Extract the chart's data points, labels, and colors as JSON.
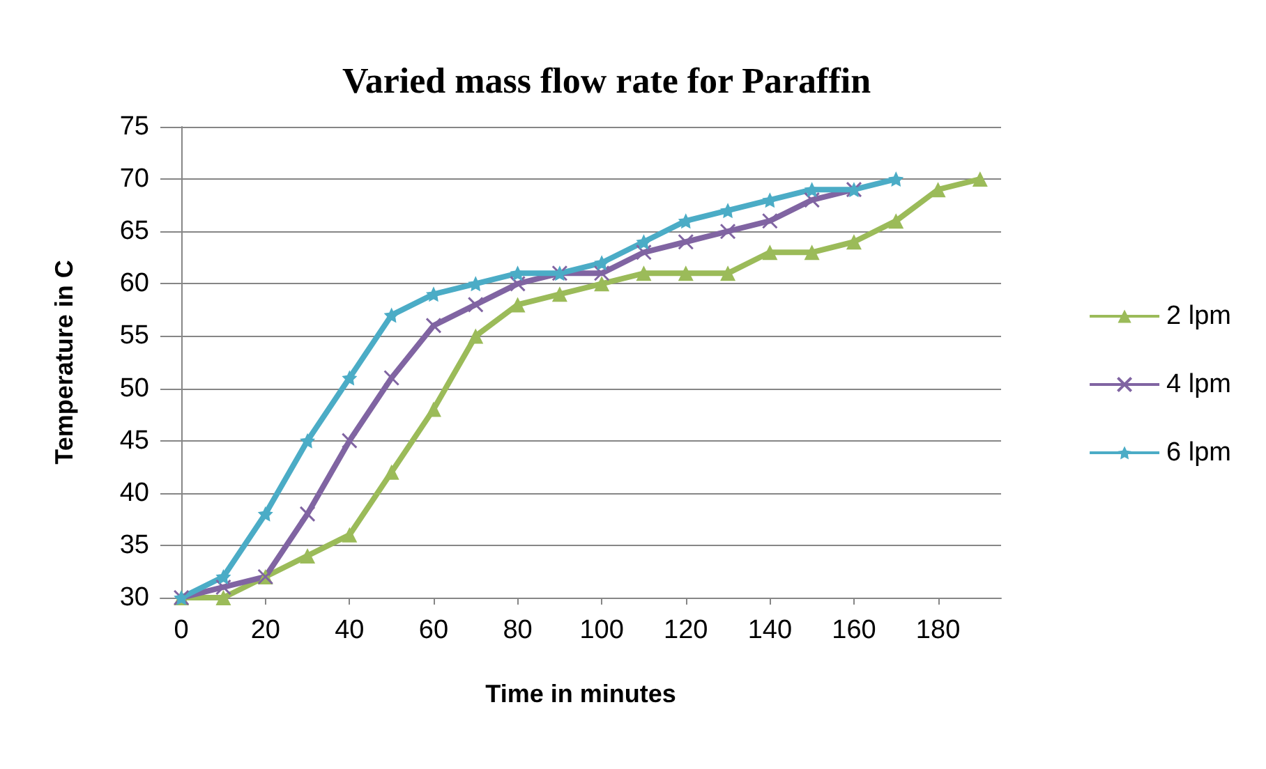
{
  "chart_data": {
    "type": "line",
    "title": "Varied mass flow rate for Paraffin",
    "xlabel": "Time in minutes",
    "ylabel": "Temperature in C",
    "xlim": [
      -5,
      195
    ],
    "xticks": [
      0,
      20,
      40,
      60,
      80,
      100,
      120,
      140,
      160,
      180
    ],
    "ylim": [
      30,
      75
    ],
    "yticks": [
      30,
      35,
      40,
      45,
      50,
      55,
      60,
      65,
      70,
      75
    ],
    "grid": "y",
    "legend": "right",
    "series": [
      {
        "name": "2 lpm",
        "color": "#9bbb59",
        "marker": "triangle",
        "x": [
          0,
          10,
          20,
          30,
          40,
          50,
          60,
          70,
          80,
          90,
          100,
          110,
          120,
          130,
          140,
          150,
          160,
          170,
          180,
          190
        ],
        "values": [
          30,
          30,
          32,
          34,
          36,
          42,
          48,
          55,
          58,
          59,
          60,
          61,
          61,
          61,
          63,
          63,
          64,
          66,
          69,
          70
        ]
      },
      {
        "name": "4 lpm",
        "color": "#8064a2",
        "marker": "cross",
        "x": [
          0,
          10,
          20,
          30,
          40,
          50,
          60,
          70,
          80,
          90,
          100,
          110,
          120,
          130,
          140,
          150,
          160
        ],
        "values": [
          30,
          31,
          32,
          38,
          45,
          51,
          56,
          58,
          60,
          61,
          61,
          63,
          64,
          65,
          66,
          68,
          69
        ]
      },
      {
        "name": "6 lpm",
        "color": "#4bacc6",
        "marker": "star",
        "x": [
          0,
          10,
          20,
          30,
          40,
          50,
          60,
          70,
          80,
          90,
          100,
          110,
          120,
          130,
          140,
          150,
          160,
          170
        ],
        "values": [
          30,
          32,
          38,
          45,
          51,
          57,
          59,
          60,
          61,
          61,
          62,
          64,
          66,
          67,
          68,
          69,
          69,
          70
        ]
      }
    ]
  }
}
